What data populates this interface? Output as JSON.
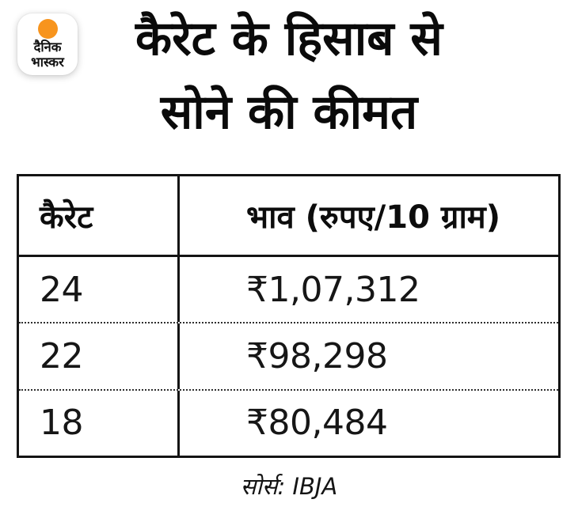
{
  "brand": {
    "name_line1": "दैनिक",
    "name_line2": "भास्कर",
    "dot_color": "#F7941D"
  },
  "title": {
    "line1": "कैरेट के हिसाब से",
    "line2": "सोने की कीमत"
  },
  "table": {
    "headers": {
      "carat": "कैरेट",
      "price": "भाव (रुपए/10 ग्राम)"
    },
    "rows": [
      {
        "carat": "24",
        "price": "₹1,07,312"
      },
      {
        "carat": "22",
        "price": "₹98,298"
      },
      {
        "carat": "18",
        "price": "₹80,484"
      }
    ]
  },
  "footer": {
    "source": "सोर्स: IBJA"
  },
  "colors": {
    "accent_orange": "#F7941D",
    "table_border": "#141414",
    "text": "#0f0f0f",
    "background": "#ffffff"
  },
  "chart_data": {
    "type": "table",
    "title": "कैरेट के हिसाब से सोने की कीमत",
    "columns": [
      "कैरेट",
      "भाव (रुपए/10 ग्राम)"
    ],
    "rows": [
      [
        "24",
        "₹1,07,312"
      ],
      [
        "22",
        "₹98,298"
      ],
      [
        "18",
        "₹80,484"
      ]
    ],
    "categories": [
      "24",
      "22",
      "18"
    ],
    "values": [
      107312,
      98298,
      80484
    ],
    "unit": "रुपए/10 ग्राम (INR per 10 grams)",
    "source": "IBJA",
    "grid": "solid outer border, dotted row separators, single vertical divider"
  }
}
